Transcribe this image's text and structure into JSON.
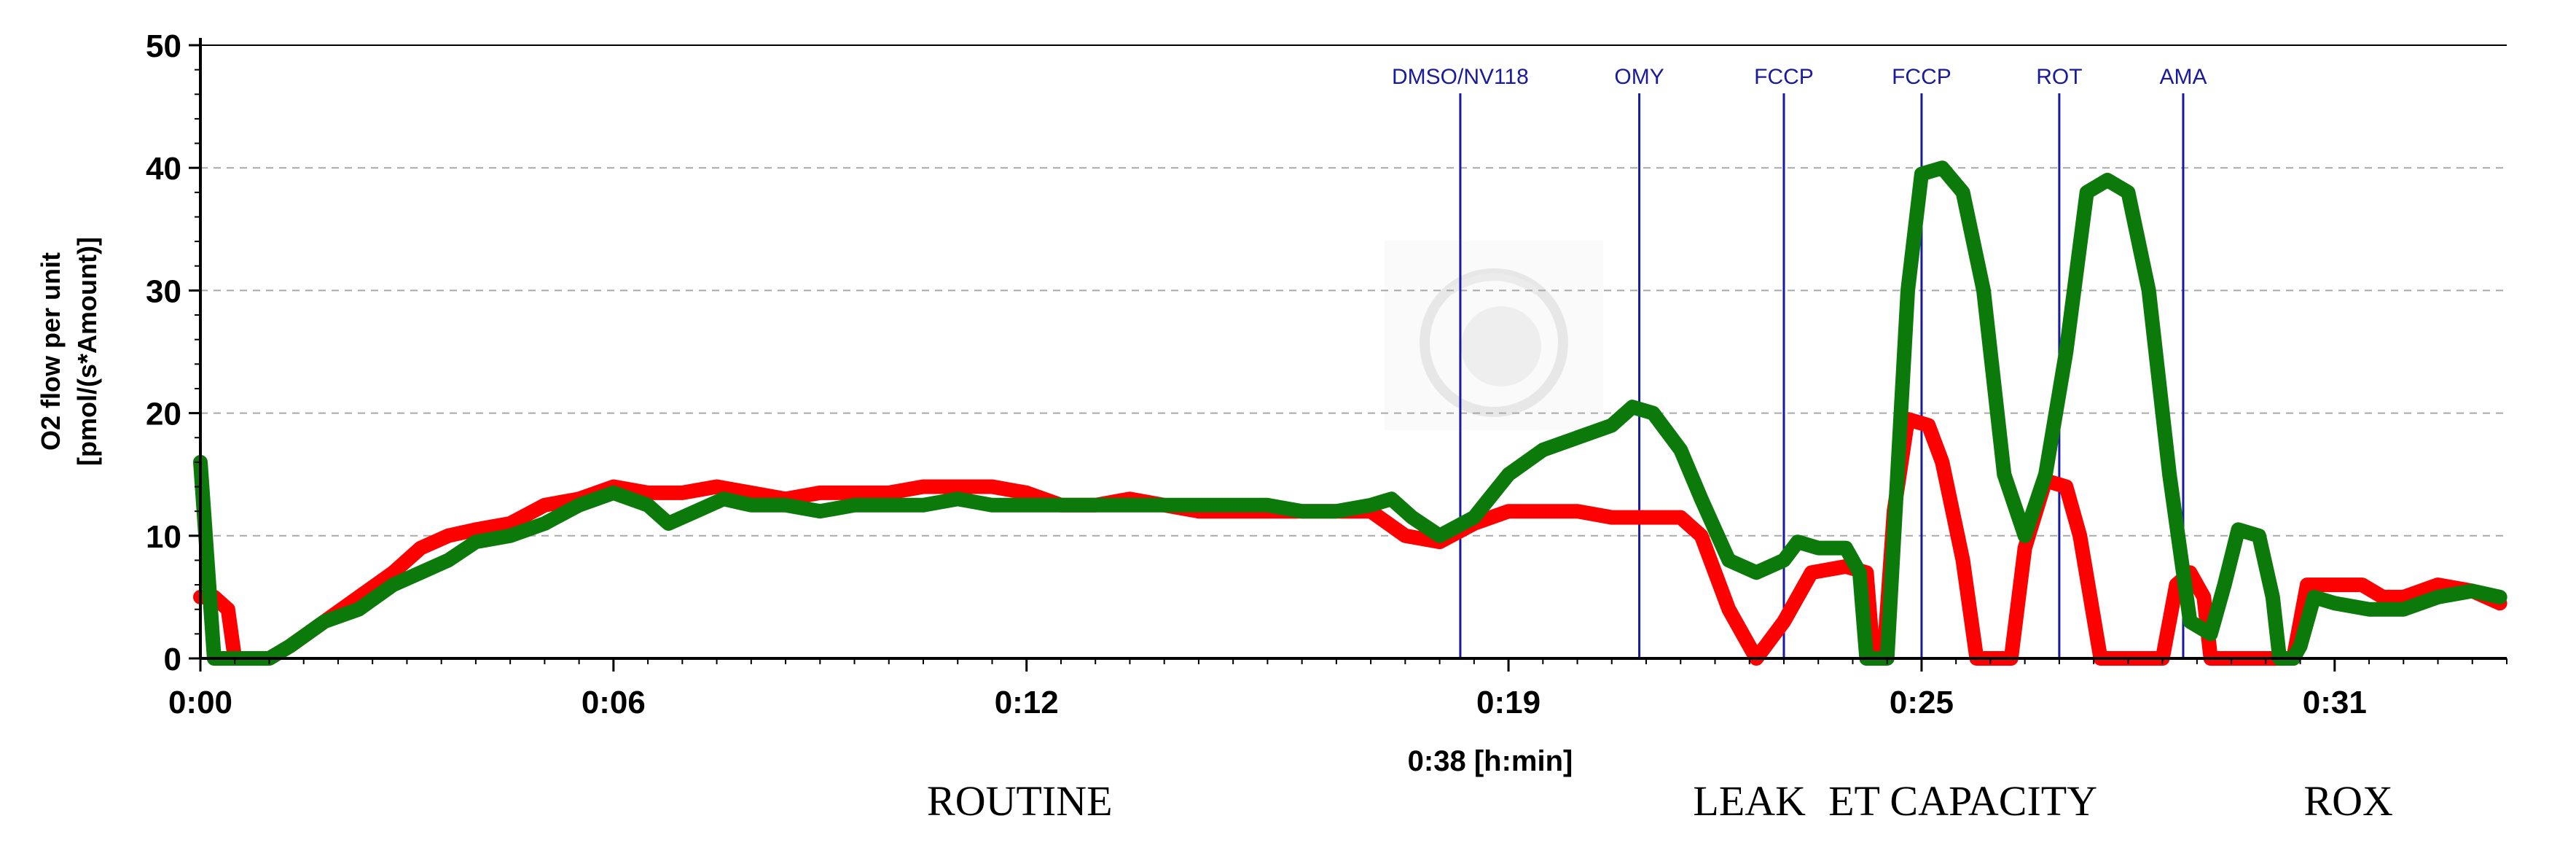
{
  "chart_data": {
    "type": "line",
    "ylabel_line1": "O2 flow per unit",
    "ylabel_line2": "[pmol/(s*Amount)]",
    "xlabel": "0:38 [h:min]",
    "ylim": [
      0,
      50
    ],
    "xlim_minutes": [
      0,
      33.5
    ],
    "y_ticks": [
      "0",
      "10",
      "20",
      "30",
      "40",
      "50"
    ],
    "x_ticks": [
      {
        "minute": 0,
        "label": "0:00"
      },
      {
        "minute": 6,
        "label": "0:06"
      },
      {
        "minute": 12,
        "label": "0:12"
      },
      {
        "minute": 19,
        "label": "0:19"
      },
      {
        "minute": 25,
        "label": "0:25"
      },
      {
        "minute": 31,
        "label": "0:31"
      }
    ],
    "grid": "horizontal dashed",
    "events": [
      {
        "minute": 18.3,
        "label": "DMSO/NV118"
      },
      {
        "minute": 20.9,
        "label": "OMY"
      },
      {
        "minute": 23.0,
        "label": "FCCP"
      },
      {
        "minute": 25.0,
        "label": "FCCP"
      },
      {
        "minute": 27.0,
        "label": "ROT"
      },
      {
        "minute": 28.8,
        "label": "AMA"
      }
    ],
    "phases": [
      {
        "minute": 11.9,
        "label": "ROUTINE"
      },
      {
        "minute": 22.5,
        "label": "LEAK"
      },
      {
        "minute": 25.6,
        "label": "ET CAPACITY"
      },
      {
        "minute": 31.2,
        "label": "ROX"
      }
    ],
    "series": [
      {
        "color": "#ff0000",
        "points": [
          [
            0.0,
            5
          ],
          [
            0.2,
            5
          ],
          [
            0.4,
            4
          ],
          [
            0.5,
            0
          ],
          [
            1.0,
            0
          ],
          [
            1.3,
            1
          ],
          [
            1.8,
            3
          ],
          [
            2.3,
            5
          ],
          [
            2.8,
            7
          ],
          [
            3.2,
            9
          ],
          [
            3.6,
            10
          ],
          [
            4.0,
            10.5
          ],
          [
            4.5,
            11
          ],
          [
            5.0,
            12.5
          ],
          [
            5.5,
            13
          ],
          [
            6.0,
            14
          ],
          [
            6.5,
            13.5
          ],
          [
            7.0,
            13.5
          ],
          [
            7.5,
            14
          ],
          [
            8.0,
            13.5
          ],
          [
            8.5,
            13
          ],
          [
            9.0,
            13.5
          ],
          [
            9.5,
            13.5
          ],
          [
            10.0,
            13.5
          ],
          [
            10.5,
            14
          ],
          [
            11.0,
            14
          ],
          [
            11.5,
            14
          ],
          [
            12.0,
            13.5
          ],
          [
            12.5,
            12.5
          ],
          [
            13.0,
            12.5
          ],
          [
            13.5,
            13
          ],
          [
            14.0,
            12.5
          ],
          [
            14.5,
            12
          ],
          [
            15.0,
            12
          ],
          [
            15.5,
            12
          ],
          [
            16.0,
            12
          ],
          [
            16.5,
            12
          ],
          [
            17.0,
            12
          ],
          [
            17.5,
            10
          ],
          [
            18.0,
            9.5
          ],
          [
            18.5,
            11
          ],
          [
            19.0,
            12
          ],
          [
            19.5,
            12
          ],
          [
            20.0,
            12
          ],
          [
            20.5,
            11.5
          ],
          [
            21.0,
            11.5
          ],
          [
            21.5,
            11.5
          ],
          [
            21.8,
            10
          ],
          [
            22.2,
            4
          ],
          [
            22.6,
            0
          ],
          [
            23.0,
            3
          ],
          [
            23.4,
            7
          ],
          [
            23.9,
            7.5
          ],
          [
            24.2,
            7
          ],
          [
            24.3,
            0
          ],
          [
            24.45,
            0
          ],
          [
            24.6,
            12
          ],
          [
            24.8,
            19.5
          ],
          [
            25.1,
            19
          ],
          [
            25.3,
            16
          ],
          [
            25.6,
            8
          ],
          [
            25.8,
            0
          ],
          [
            26.3,
            0
          ],
          [
            26.5,
            9
          ],
          [
            26.8,
            14.5
          ],
          [
            27.1,
            14
          ],
          [
            27.3,
            10
          ],
          [
            27.6,
            0
          ],
          [
            28.5,
            0
          ],
          [
            28.7,
            6
          ],
          [
            28.9,
            7
          ],
          [
            29.1,
            5
          ],
          [
            29.2,
            0
          ],
          [
            30.4,
            0
          ],
          [
            30.6,
            6
          ],
          [
            31.0,
            6
          ],
          [
            31.4,
            6
          ],
          [
            31.7,
            5
          ],
          [
            32.0,
            5
          ],
          [
            32.5,
            6
          ],
          [
            33.0,
            5.5
          ],
          [
            33.4,
            4.5
          ]
        ]
      },
      {
        "color": "#0b7a0b",
        "points": [
          [
            0.0,
            16
          ],
          [
            0.2,
            0
          ],
          [
            1.0,
            0
          ],
          [
            1.3,
            1
          ],
          [
            1.8,
            3
          ],
          [
            2.3,
            4
          ],
          [
            2.8,
            6
          ],
          [
            3.2,
            7
          ],
          [
            3.6,
            8
          ],
          [
            4.0,
            9.5
          ],
          [
            4.5,
            10
          ],
          [
            5.0,
            11
          ],
          [
            5.5,
            12.5
          ],
          [
            6.0,
            13.5
          ],
          [
            6.5,
            12.5
          ],
          [
            6.8,
            11
          ],
          [
            7.2,
            12
          ],
          [
            7.6,
            13
          ],
          [
            8.0,
            12.5
          ],
          [
            8.5,
            12.5
          ],
          [
            9.0,
            12
          ],
          [
            9.5,
            12.5
          ],
          [
            10.0,
            12.5
          ],
          [
            10.5,
            12.5
          ],
          [
            11.0,
            13
          ],
          [
            11.5,
            12.5
          ],
          [
            12.0,
            12.5
          ],
          [
            12.5,
            12.5
          ],
          [
            13.0,
            12.5
          ],
          [
            13.5,
            12.5
          ],
          [
            14.0,
            12.5
          ],
          [
            14.5,
            12.5
          ],
          [
            15.0,
            12.5
          ],
          [
            15.5,
            12.5
          ],
          [
            16.0,
            12
          ],
          [
            16.5,
            12
          ],
          [
            17.0,
            12.5
          ],
          [
            17.3,
            13
          ],
          [
            17.6,
            11.5
          ],
          [
            18.0,
            10
          ],
          [
            18.5,
            11.5
          ],
          [
            19.0,
            15
          ],
          [
            19.5,
            17
          ],
          [
            20.0,
            18
          ],
          [
            20.5,
            19
          ],
          [
            20.8,
            20.5
          ],
          [
            21.1,
            20
          ],
          [
            21.5,
            17
          ],
          [
            21.8,
            13
          ],
          [
            22.2,
            8
          ],
          [
            22.6,
            7
          ],
          [
            23.0,
            8
          ],
          [
            23.2,
            9.5
          ],
          [
            23.5,
            9
          ],
          [
            23.9,
            9
          ],
          [
            24.1,
            7
          ],
          [
            24.2,
            0
          ],
          [
            24.5,
            0
          ],
          [
            24.6,
            10
          ],
          [
            24.8,
            30
          ],
          [
            25.0,
            39.5
          ],
          [
            25.3,
            40
          ],
          [
            25.6,
            38
          ],
          [
            25.9,
            30
          ],
          [
            26.2,
            15
          ],
          [
            26.5,
            10
          ],
          [
            26.8,
            15
          ],
          [
            27.1,
            25
          ],
          [
            27.4,
            38
          ],
          [
            27.7,
            39
          ],
          [
            28.0,
            38
          ],
          [
            28.3,
            30
          ],
          [
            28.6,
            15
          ],
          [
            28.9,
            3
          ],
          [
            29.2,
            2
          ],
          [
            29.4,
            6
          ],
          [
            29.6,
            10.5
          ],
          [
            29.9,
            10
          ],
          [
            30.1,
            5
          ],
          [
            30.2,
            0
          ],
          [
            30.4,
            0
          ],
          [
            30.5,
            1
          ],
          [
            30.7,
            5
          ],
          [
            31.0,
            4.5
          ],
          [
            31.5,
            4
          ],
          [
            32.0,
            4
          ],
          [
            32.5,
            5
          ],
          [
            33.0,
            5.5
          ],
          [
            33.4,
            5
          ]
        ]
      }
    ]
  }
}
